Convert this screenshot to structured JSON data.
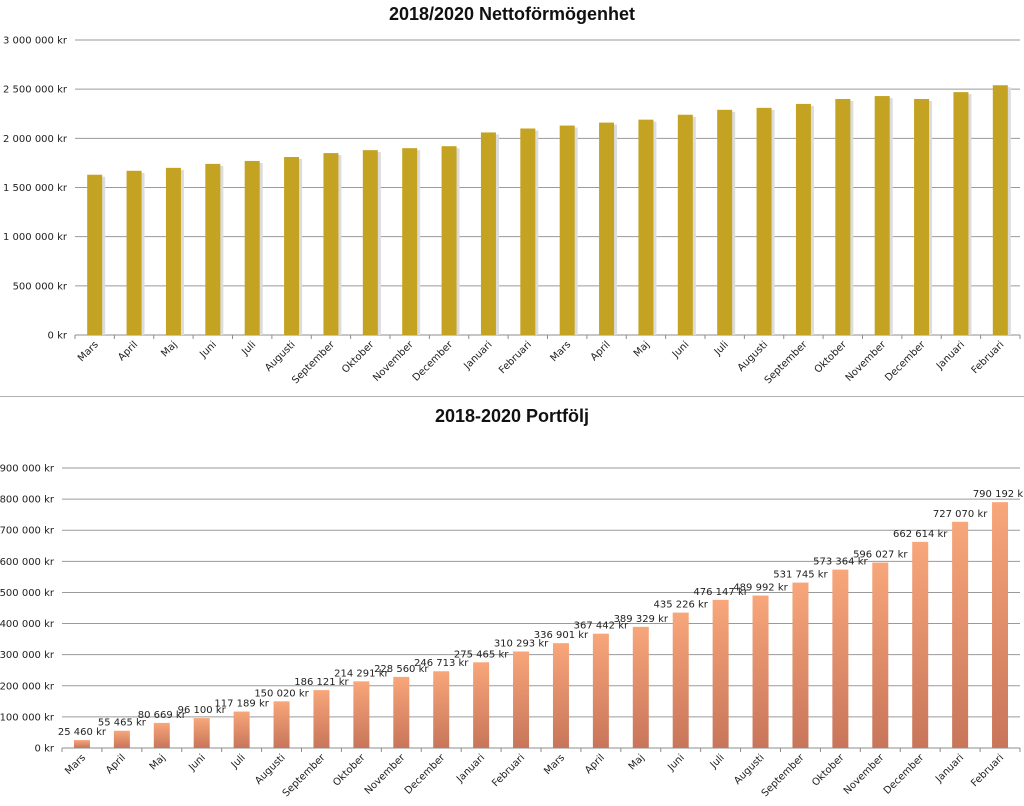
{
  "chart_data": [
    {
      "type": "bar",
      "title": "2018/2020 Nettoförmögenhet",
      "categories": [
        "Mars",
        "April",
        "Maj",
        "Juni",
        "Juli",
        "Augusti",
        "September",
        "Oktober",
        "November",
        "December",
        "Januari",
        "Februari",
        "Mars",
        "April",
        "Maj",
        "Juni",
        "Juli",
        "Augusti",
        "September",
        "Oktober",
        "November",
        "December",
        "Januari",
        "Februari"
      ],
      "values": [
        1630000,
        1670000,
        1700000,
        1740000,
        1770000,
        1810000,
        1850000,
        1880000,
        1900000,
        1920000,
        2060000,
        2100000,
        2130000,
        2160000,
        2190000,
        2240000,
        2290000,
        2310000,
        2350000,
        2400000,
        2430000,
        2400000,
        2470000,
        2540000
      ],
      "ylim": [
        0,
        3000000
      ],
      "yticks": [
        {
          "value": 0,
          "label": "0 kr"
        },
        {
          "value": 500000,
          "label": "500 000 kr"
        },
        {
          "value": 1000000,
          "label": "1 000 000 kr"
        },
        {
          "value": 1500000,
          "label": "1 500 000 kr"
        },
        {
          "value": 2000000,
          "label": "2 000 000 kr"
        },
        {
          "value": 2500000,
          "label": "2 500 000 kr"
        },
        {
          "value": 3000000,
          "label": "3 000 000 kr"
        }
      ],
      "grid": true,
      "legend": "none",
      "color": "#c4a323"
    },
    {
      "type": "bar",
      "title": "2018-2020 Portfölj",
      "categories": [
        "Mars",
        "April",
        "Maj",
        "Juni",
        "Juli",
        "Augusti",
        "September",
        "Oktober",
        "November",
        "December",
        "Januari",
        "Februari",
        "Mars",
        "April",
        "Maj",
        "Juni",
        "Juli",
        "Augusti",
        "September",
        "Oktober",
        "November",
        "December",
        "Januari",
        "Februari"
      ],
      "values": [
        25460,
        55465,
        80669,
        96100,
        117189,
        150020,
        186121,
        214291,
        228560,
        246713,
        275465,
        310293,
        336901,
        367442,
        389329,
        435226,
        476147,
        489992,
        531745,
        573364,
        596027,
        662614,
        727070,
        790192
      ],
      "data_labels": [
        "25 460 kr",
        "55 465 kr",
        "80 669 kr",
        "96 100 kr",
        "117 189 kr",
        "150 020 kr",
        "186 121 kr",
        "214 291 kr",
        "228 560 kr",
        "246 713 kr",
        "275 465 kr",
        "310 293 kr",
        "336 901 kr",
        "367 442 kr",
        "389 329 kr",
        "435 226 kr",
        "476 147 kr",
        "489 992 kr",
        "531 745 kr",
        "573 364 kr",
        "596 027 kr",
        "662 614 kr",
        "727 070 kr",
        "790 192 kr"
      ],
      "ylim": [
        0,
        900000
      ],
      "yticks": [
        {
          "value": 0,
          "label": "0 kr"
        },
        {
          "value": 100000,
          "label": "100 000 kr"
        },
        {
          "value": 200000,
          "label": "200 000 kr"
        },
        {
          "value": 300000,
          "label": "300 000 kr"
        },
        {
          "value": 400000,
          "label": "400 000 kr"
        },
        {
          "value": 500000,
          "label": "500 000 kr"
        },
        {
          "value": 600000,
          "label": "600 000 kr"
        },
        {
          "value": 700000,
          "label": "700 000 kr"
        },
        {
          "value": 800000,
          "label": "800 000 kr"
        },
        {
          "value": 900000,
          "label": "900 000 kr"
        }
      ],
      "grid": true,
      "legend": "none",
      "color_top": "#f8a67a",
      "color_bottom": "#c8755a"
    }
  ]
}
